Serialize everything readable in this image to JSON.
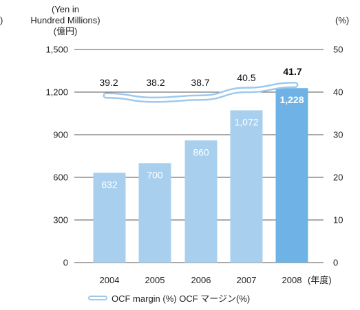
{
  "chart_data": {
    "type": "bar",
    "categories": [
      "2004",
      "2005",
      "2006",
      "2007",
      "2008"
    ],
    "x_suffix": "(年度)",
    "series": [
      {
        "values": [
          632,
          700,
          860,
          1072,
          1228
        ],
        "value_labels": [
          "632",
          "700",
          "860",
          "1,072",
          "1,228"
        ],
        "color": "#a8d0ee",
        "highlight_color": "#6fb3e6"
      },
      {
        "name": "OCF margin (%) OCF マージン(%)",
        "type": "line",
        "axis": "right",
        "values": [
          39.2,
          38.2,
          38.7,
          40.5,
          41.7
        ],
        "value_labels": [
          "39.2",
          "38.2",
          "38.7",
          "40.5",
          "41.7"
        ],
        "color": "#9ec9ee"
      }
    ],
    "y_left": {
      "label_lines": [
        "(Yen in",
        "Hundred Millions)",
        "(億円)"
      ],
      "ylim": [
        0,
        1500
      ],
      "ticks": [
        "0",
        "300",
        "600",
        "900",
        "1,200",
        "1,500"
      ]
    },
    "y_right": {
      "label": "(%)",
      "ylim": [
        0,
        50
      ],
      "ticks": [
        "0",
        "10",
        "20",
        "30",
        "40",
        "50"
      ]
    },
    "left_cut_text": ")",
    "grid": true,
    "legend": "bottom-center"
  }
}
